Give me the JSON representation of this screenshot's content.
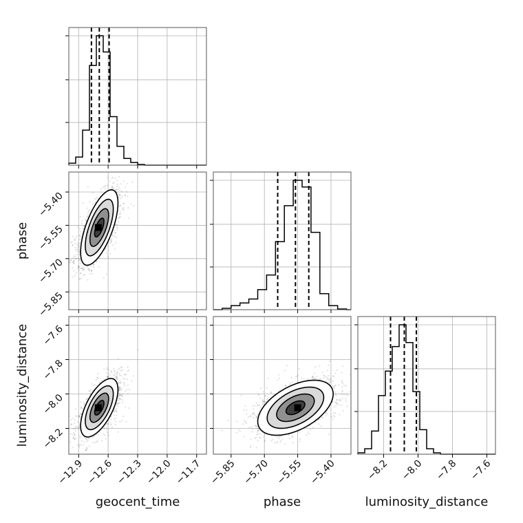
{
  "chart_data": {
    "type": "corner",
    "parameters": [
      {
        "name": "geocent_time",
        "label": "geocent_time",
        "range": [
          -13.0,
          -11.6
        ],
        "ticks": [
          -12.9,
          -12.6,
          -12.3,
          -12.0,
          -11.7
        ],
        "tick_labels": [
          "−12.9",
          "−12.6",
          "−12.3",
          "−12.0",
          "−11.7"
        ],
        "quantiles": [
          -12.77,
          -12.69,
          -12.59
        ]
      },
      {
        "name": "phase",
        "label": "phase",
        "range": [
          -5.93,
          -5.31
        ],
        "ticks": [
          -5.85,
          -5.7,
          -5.55,
          -5.4
        ],
        "tick_labels": [
          "−5.85",
          "−5.70",
          "−5.55",
          "−5.40"
        ],
        "quantiles": [
          -5.64,
          -5.56,
          -5.5
        ]
      },
      {
        "name": "luminosity_distance",
        "label": "luminosity_distance",
        "range": [
          -8.35,
          -7.55
        ],
        "ticks": [
          -8.2,
          -8.0,
          -7.8,
          -7.6
        ],
        "tick_labels": [
          "−8.2",
          "−8.0",
          "−7.8",
          "−7.6"
        ],
        "quantiles": [
          -8.16,
          -8.08,
          -8.01
        ]
      }
    ],
    "histograms": [
      {
        "param": "geocent_time",
        "bin_edges": [
          -13.0,
          -12.93,
          -12.86,
          -12.79,
          -12.72,
          -12.65,
          -12.58,
          -12.51,
          -12.44,
          -12.37,
          -12.3,
          -12.23
        ],
        "counts": [
          0.015,
          0.06,
          0.26,
          0.74,
          0.96,
          0.84,
          0.36,
          0.14,
          0.05,
          0.02,
          0.005
        ]
      },
      {
        "param": "phase",
        "bin_edges": [
          -5.93,
          -5.89,
          -5.85,
          -5.81,
          -5.77,
          -5.73,
          -5.69,
          -5.65,
          -5.61,
          -5.57,
          -5.53,
          -5.49,
          -5.45,
          -5.41,
          -5.37,
          -5.33
        ],
        "counts": [
          0.0,
          0.01,
          0.03,
          0.05,
          0.08,
          0.15,
          0.26,
          0.51,
          0.78,
          0.97,
          0.92,
          0.58,
          0.12,
          0.03,
          0.005
        ]
      },
      {
        "param": "luminosity_distance",
        "bin_edges": [
          -8.35,
          -8.31,
          -8.27,
          -8.23,
          -8.19,
          -8.15,
          -8.11,
          -8.07,
          -8.03,
          -7.99,
          -7.95,
          -7.91,
          -7.87,
          -7.83
        ],
        "counts": [
          0.01,
          0.04,
          0.17,
          0.43,
          0.61,
          0.79,
          0.95,
          0.82,
          0.46,
          0.18,
          0.04,
          0.01,
          0.0
        ]
      }
    ],
    "pairs": [
      {
        "x": "geocent_time",
        "y": "phase",
        "mean": [
          -12.69,
          -5.56
        ],
        "sd": [
          0.095,
          0.085
        ],
        "corr": 0.65,
        "peak": [
          -12.7,
          -5.56
        ],
        "n_points": 1500
      },
      {
        "x": "geocent_time",
        "y": "luminosity_distance",
        "mean": [
          -12.69,
          -8.08
        ],
        "sd": [
          0.095,
          0.085
        ],
        "corr": 0.62,
        "peak": [
          -12.7,
          -8.08
        ],
        "n_points": 1500
      },
      {
        "x": "phase",
        "y": "luminosity_distance",
        "mean": [
          -5.56,
          -8.08
        ],
        "sd": [
          0.085,
          0.08
        ],
        "corr": 0.5,
        "peak": [
          -5.55,
          -8.08
        ],
        "n_points": 1500
      }
    ],
    "grid": true
  }
}
